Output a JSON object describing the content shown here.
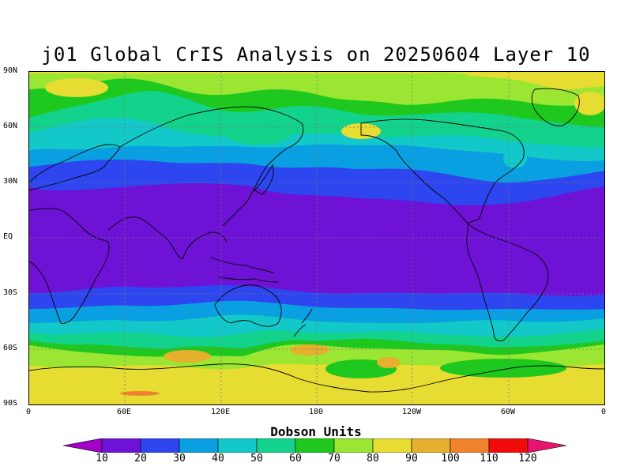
{
  "title": "j01 Global CrIS Analysis on 20250604 Layer 10",
  "map": {
    "lat_labels": [
      "90N",
      "60N",
      "30N",
      "EQ",
      "30S",
      "60S",
      "90S"
    ],
    "lon_labels": [
      "0",
      "60E",
      "120E",
      "180",
      "120W",
      "60W",
      "0"
    ]
  },
  "colorbar": {
    "title": "Dobson Units",
    "labels": [
      "10",
      "20",
      "30",
      "40",
      "50",
      "60",
      "70",
      "80",
      "90",
      "100",
      "110",
      "120"
    ],
    "colors": [
      "#a000c8",
      "#6e12d6",
      "#2d46f0",
      "#0a9fe0",
      "#12c8c8",
      "#12d28c",
      "#1ec81e",
      "#9be632",
      "#e6dc32",
      "#e6af2d",
      "#f0822d",
      "#f00a0a",
      "#e6146e"
    ]
  },
  "colors": {
    "tropics": "#6e12d6",
    "band_20_30": "#2d46f0",
    "band_30_40": "#0a9fe0",
    "band_40_50": "#12c8c8",
    "band_50_60": "#12d28c",
    "band_60_70": "#1ec81e",
    "band_70_80": "#9be632",
    "band_80_90": "#e6dc32",
    "band_90_100": "#e6af2d",
    "coastline": "#000000"
  }
}
